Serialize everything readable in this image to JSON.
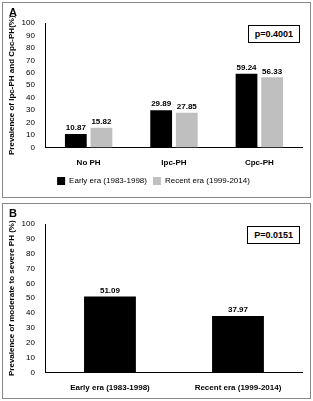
{
  "chart_data": [
    {
      "type": "bar",
      "title": "A",
      "y_label": "Prevalence of Ipc-PH and Cpc-PH(%)",
      "categories": [
        "No PH",
        "Ipc-PH",
        "Cpc-PH"
      ],
      "series": [
        {
          "name": "Early era (1983-1998)",
          "color": "#000000",
          "values": [
            10.87,
            29.89,
            59.24
          ]
        },
        {
          "name": "Recent era (1999-2014)",
          "color": "#bfbfbf",
          "values": [
            15.82,
            27.85,
            56.33
          ]
        }
      ],
      "ylim": [
        0,
        100
      ],
      "yticks": [
        0,
        10,
        20,
        30,
        40,
        50,
        60,
        70,
        80,
        90,
        100
      ],
      "annotations": [
        "p=0.4001"
      ],
      "legend": "bottom",
      "data_labels": true,
      "grid": false
    },
    {
      "type": "bar",
      "title": "B",
      "y_label": "Prevalence of moderate to severe PH (%)",
      "categories": [
        "Early era (1983-1998)",
        "Recent era (1999-2014)"
      ],
      "values": [
        51.09,
        37.97
      ],
      "color": "#000000",
      "ylim": [
        0,
        100
      ],
      "yticks": [
        0,
        10,
        20,
        30,
        40,
        50,
        60,
        70,
        80,
        90,
        100
      ],
      "annotations": [
        "P=0.0151"
      ],
      "data_labels": true,
      "grid": false
    }
  ]
}
